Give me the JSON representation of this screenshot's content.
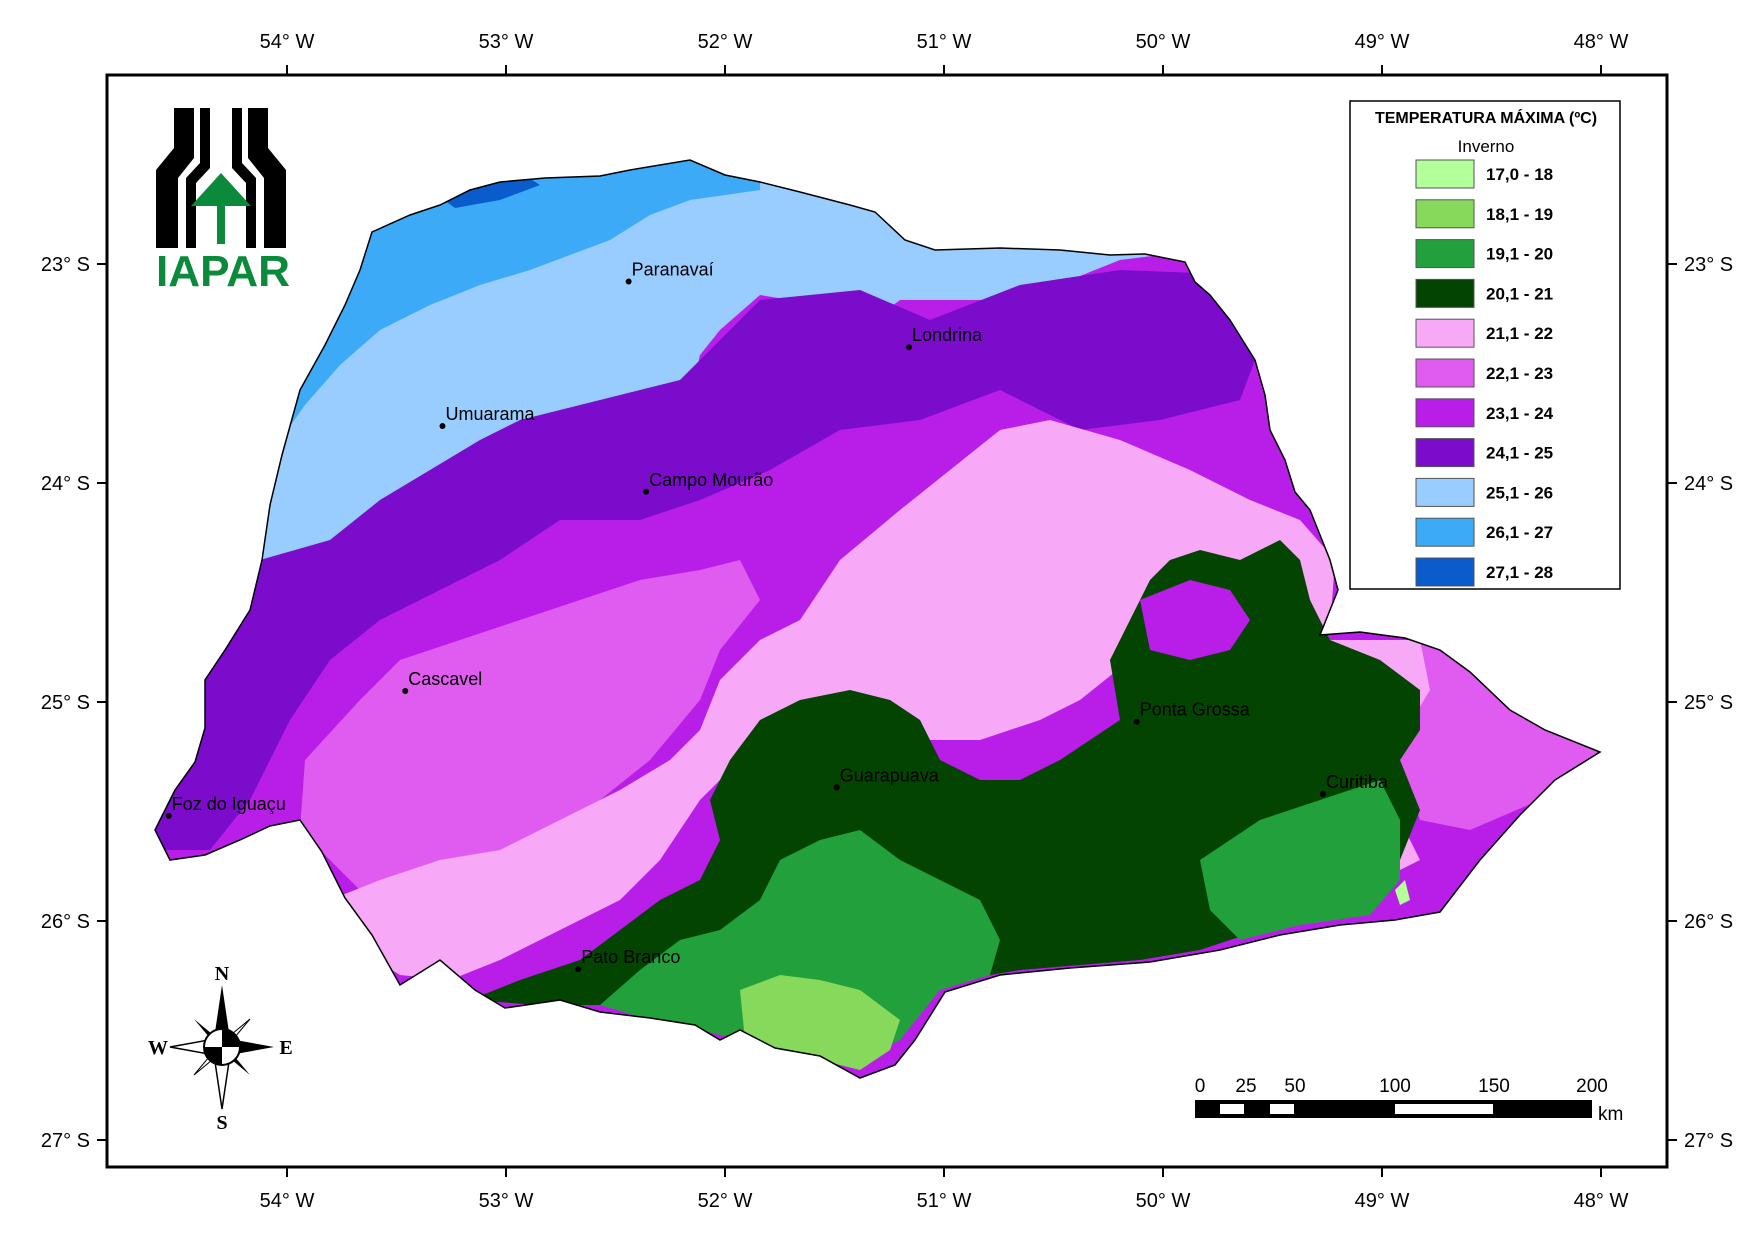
{
  "legend": {
    "title": "TEMPERATURA MÁXIMA (ºC)",
    "subtitle": "Inverno",
    "classes": [
      {
        "label": "17,0 - 18",
        "color": "#b3ff99"
      },
      {
        "label": "18,1 - 19",
        "color": "#86d95a"
      },
      {
        "label": "19,1 - 20",
        "color": "#21a03c"
      },
      {
        "label": "20,1 - 21",
        "color": "#024400"
      },
      {
        "label": "21,1 - 22",
        "color": "#f7a8f7"
      },
      {
        "label": "22,1 - 23",
        "color": "#e05cf0"
      },
      {
        "label": "23,1 - 24",
        "color": "#b81ee8"
      },
      {
        "label": "24,1 - 25",
        "color": "#7b0ccc"
      },
      {
        "label": "25,1 - 26",
        "color": "#99ccff"
      },
      {
        "label": "26,1 - 27",
        "color": "#3daaf7"
      },
      {
        "label": "27,1 - 28",
        "color": "#0a5ccc"
      }
    ]
  },
  "axes": {
    "longitudes": [
      "54° W",
      "53° W",
      "52° W",
      "51° W",
      "50° W",
      "49° W",
      "48° W"
    ],
    "latitudes": [
      "23° S",
      "24° S",
      "25° S",
      "26° S",
      "27° S"
    ]
  },
  "cities": [
    {
      "name": "Paranavaí",
      "lon": -52.44,
      "lat": -23.08
    },
    {
      "name": "Londrina",
      "lon": -51.16,
      "lat": -23.38
    },
    {
      "name": "Umuarama",
      "lon": -53.29,
      "lat": -23.74
    },
    {
      "name": "Campo Mourão",
      "lon": -52.36,
      "lat": -24.04
    },
    {
      "name": "Cascavel",
      "lon": -53.46,
      "lat": -24.95
    },
    {
      "name": "Ponta Grossa",
      "lon": -50.12,
      "lat": -25.09
    },
    {
      "name": "Guarapuava",
      "lon": -51.49,
      "lat": -25.39
    },
    {
      "name": "Curitiba",
      "lon": -49.27,
      "lat": -25.42
    },
    {
      "name": "Foz do Iguaçu",
      "lon": -54.54,
      "lat": -25.52
    },
    {
      "name": "Pato Branco",
      "lon": -52.67,
      "lat": -26.22
    }
  ],
  "scale_bar": {
    "labels": [
      "0",
      "25",
      "50",
      "100",
      "150",
      "200"
    ],
    "unit": "km"
  },
  "compass": {
    "n": "N",
    "s": "S",
    "e": "E",
    "w": "W"
  },
  "logo": {
    "text": "IAPAR"
  }
}
